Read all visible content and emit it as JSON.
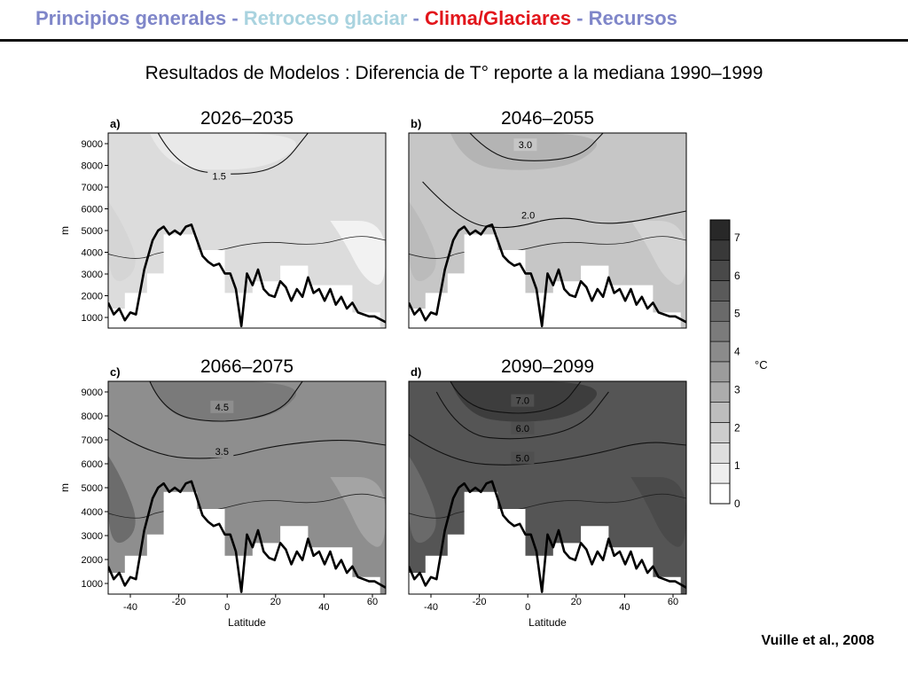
{
  "nav": {
    "items": [
      {
        "label": "Principios generales",
        "color": "#7f86c9"
      },
      {
        "label": "Retroceso glaciar",
        "color": "#a9d3df"
      },
      {
        "label": "Clima/Glaciares",
        "color": "#e2151b"
      },
      {
        "label": "Recursos",
        "color": "#7f86c9"
      }
    ],
    "separator": " - "
  },
  "subtitle": "Resultados de Modelos : Diferencia de T° reporte a la mediana 1990–1999",
  "citation": "Vuille et al., 2008",
  "figure": {
    "y_axis_label": "m",
    "x_axis_label": "Latitude",
    "y_ticks": [
      "9000",
      "8000",
      "7000",
      "6000",
      "5000",
      "4000",
      "3000",
      "2000",
      "1000"
    ],
    "x_ticks": [
      "-40",
      "-20",
      "0",
      "20",
      "40",
      "60"
    ],
    "colorbar": {
      "unit": "°C",
      "ticks": [
        "7",
        "6",
        "5",
        "4",
        "3",
        "2",
        "1",
        "0"
      ]
    },
    "panels": [
      {
        "letter": "a)",
        "period": "2026–2035",
        "contour_labels": [
          "1.5"
        ]
      },
      {
        "letter": "b)",
        "period": "2046–2055",
        "contour_labels": [
          "3.0",
          "2.0"
        ]
      },
      {
        "letter": "c)",
        "period": "2066–2075",
        "contour_labels": [
          "4.5",
          "3.5"
        ]
      },
      {
        "letter": "d)",
        "period": "2090–2099",
        "contour_labels": [
          "7.0",
          "6.0",
          "5.0"
        ]
      }
    ]
  }
}
